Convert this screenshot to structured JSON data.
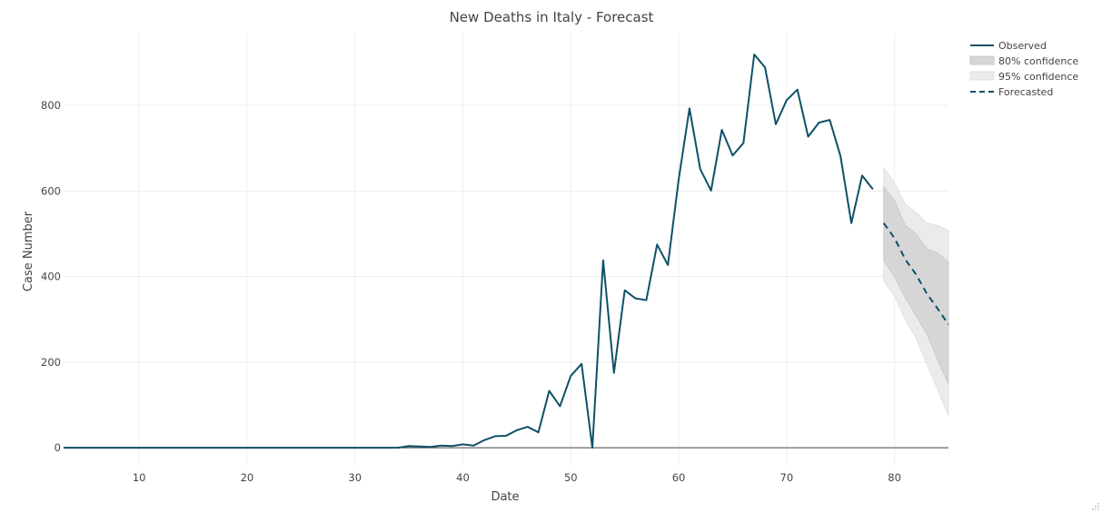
{
  "chart_data": {
    "type": "line",
    "title": "New Deaths in Italy - Forecast",
    "xlabel": "Date",
    "ylabel": "Case Number",
    "xlim": [
      3,
      85
    ],
    "ylim": [
      -40,
      970
    ],
    "x_ticks": [
      10,
      20,
      30,
      40,
      50,
      60,
      70,
      80
    ],
    "y_ticks": [
      0,
      200,
      400,
      600,
      800
    ],
    "grid": true,
    "legend_position": "top-right",
    "colors": {
      "observed": "#0f5068",
      "forecast": "#0f5068",
      "band80": "#d6d6d6",
      "band95": "#ebebeb"
    },
    "series": [
      {
        "name": "Observed",
        "style": "solid",
        "x": [
          3,
          4,
          5,
          6,
          7,
          8,
          9,
          10,
          11,
          12,
          13,
          14,
          15,
          16,
          17,
          18,
          19,
          20,
          21,
          22,
          23,
          24,
          25,
          26,
          27,
          28,
          29,
          30,
          31,
          32,
          33,
          34,
          35,
          36,
          37,
          38,
          39,
          40,
          41,
          42,
          43,
          44,
          45,
          46,
          47,
          48,
          49,
          50,
          51,
          52,
          53,
          54,
          55,
          56,
          57,
          58,
          59,
          60,
          61,
          62,
          63,
          64,
          65,
          66,
          67,
          68,
          69,
          70,
          71,
          72,
          73,
          74,
          75,
          76,
          77,
          78
        ],
        "y": [
          0,
          0,
          0,
          0,
          0,
          0,
          0,
          0,
          0,
          0,
          0,
          0,
          0,
          0,
          0,
          0,
          0,
          0,
          0,
          0,
          0,
          0,
          0,
          0,
          0,
          0,
          0,
          0,
          0,
          0,
          0,
          0,
          4,
          3,
          2,
          5,
          4,
          8,
          5,
          18,
          27,
          28,
          41,
          49,
          36,
          133,
          97,
          168,
          196,
          0,
          438,
          175,
          368,
          349,
          345,
          475,
          427,
          627,
          793,
          651,
          601,
          743,
          683,
          712,
          919,
          889,
          756,
          812,
          837,
          727,
          760,
          766,
          681,
          525,
          636,
          604
        ]
      },
      {
        "name": "Forecasted",
        "style": "dash",
        "x": [
          79,
          80,
          81,
          82,
          83,
          84,
          85
        ],
        "y": [
          525,
          490,
          440,
          405,
          360,
          325,
          288
        ]
      }
    ],
    "bands": [
      {
        "name": "95% confidence",
        "x": [
          79,
          80,
          81,
          82,
          83,
          84,
          85
        ],
        "lower": [
          390,
          355,
          300,
          255,
          195,
          135,
          75
        ],
        "upper": [
          655,
          620,
          570,
          550,
          525,
          520,
          508
        ]
      },
      {
        "name": "80% confidence",
        "x": [
          79,
          80,
          81,
          82,
          83,
          84,
          85
        ],
        "lower": [
          438,
          400,
          350,
          308,
          265,
          205,
          148
        ],
        "upper": [
          610,
          578,
          520,
          500,
          465,
          455,
          433
        ]
      }
    ],
    "legend": [
      {
        "label": "Observed",
        "kind": "line"
      },
      {
        "label": "80% confidence",
        "kind": "band80"
      },
      {
        "label": "95% confidence",
        "kind": "band95"
      },
      {
        "label": "Forecasted",
        "kind": "dash"
      }
    ]
  }
}
